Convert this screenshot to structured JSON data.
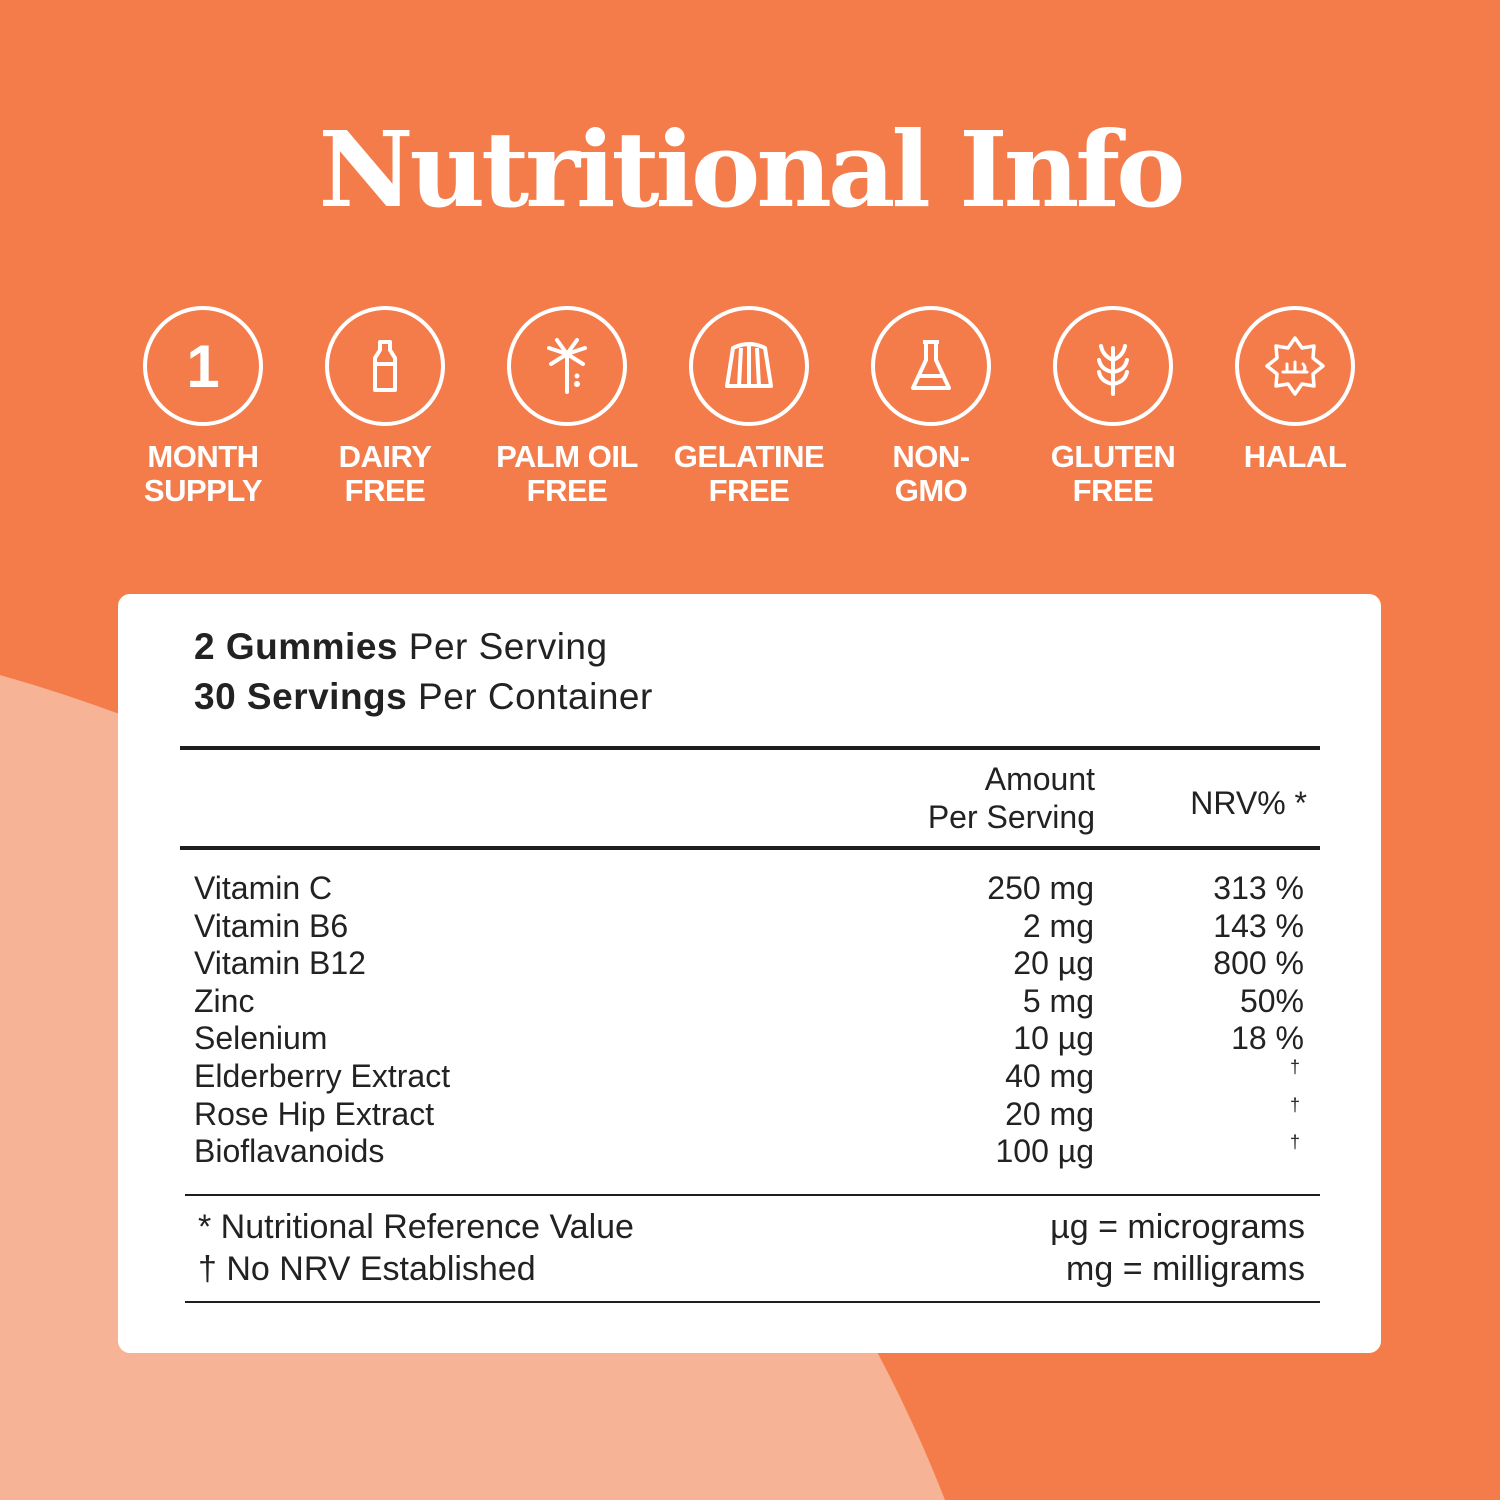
{
  "colors": {
    "background": "#F47C4B",
    "accent_shape": "#F7B396",
    "card": "#FFFFFF",
    "text": "#222222"
  },
  "title": "Nutritional Info",
  "badges": [
    {
      "icon": "number-one",
      "value": "1",
      "line1": "MONTH",
      "line2": "SUPPLY"
    },
    {
      "icon": "milk-bottle-icon",
      "line1": "DAIRY",
      "line2": "FREE"
    },
    {
      "icon": "palm-tree-icon",
      "line1": "PALM OIL",
      "line2": "FREE"
    },
    {
      "icon": "jelly-mold-icon",
      "line1": "GELATINE",
      "line2": "FREE"
    },
    {
      "icon": "flask-icon",
      "line1": "NON-",
      "line2": "GMO"
    },
    {
      "icon": "wheat-icon",
      "line1": "GLUTEN",
      "line2": "FREE"
    },
    {
      "icon": "halal-seal-icon",
      "line1": "HALAL",
      "line2": ""
    }
  ],
  "serving": {
    "size_bold": "2 Gummies",
    "size_rest": " Per Serving",
    "count_bold": "30 Servings",
    "count_rest": " Per Container"
  },
  "table": {
    "headers": {
      "amount_line1": "Amount",
      "amount_line2": "Per Serving",
      "nrv": "NRV% *"
    },
    "rows": [
      {
        "name": "Vitamin C",
        "amount": "250 mg",
        "nrv": "313 %"
      },
      {
        "name": "Vitamin B6",
        "amount": "2 mg",
        "nrv": "143 %"
      },
      {
        "name": "Vitamin B12",
        "amount": "20 µg",
        "nrv": "800 %"
      },
      {
        "name": "Zinc",
        "amount": "5 mg",
        "nrv": "50%"
      },
      {
        "name": "Selenium",
        "amount": "10 µg",
        "nrv": "18 %"
      },
      {
        "name": "Elderberry Extract",
        "amount": "40 mg",
        "dagger": "†"
      },
      {
        "name": "Rose Hip Extract",
        "amount": "20 mg",
        "dagger": "†"
      },
      {
        "name": "Bioflavanoids",
        "amount": "100 µg",
        "dagger": "†"
      }
    ]
  },
  "footnotes": {
    "nrv_note": "* Nutritional Reference Value",
    "dagger_note": "† No NRV Established",
    "ug_note": "µg = micrograms",
    "mg_note": "mg = milligrams"
  }
}
